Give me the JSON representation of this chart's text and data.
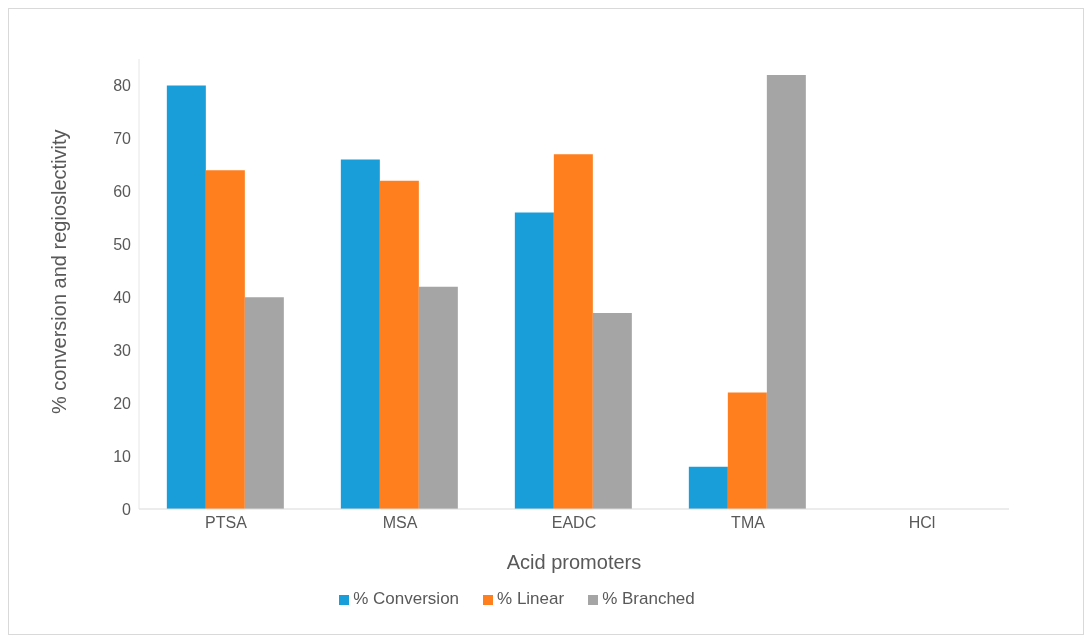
{
  "chart_data": {
    "type": "bar",
    "xlabel": "Acid promoters",
    "ylabel": "% conversion and regioslectivity",
    "categories": [
      "PTSA",
      "MSA",
      "EADC",
      "TMA",
      "HCl"
    ],
    "series": [
      {
        "name": "% Conversion",
        "color": "#1a9ed9",
        "values": [
          80,
          66,
          56,
          8,
          0
        ]
      },
      {
        "name": "% Linear",
        "color": "#ff7f1e",
        "values": [
          64,
          62,
          67,
          22,
          0
        ]
      },
      {
        "name": "% Branched",
        "color": "#a5a5a5",
        "values": [
          40,
          42,
          37,
          82,
          null
        ]
      }
    ],
    "ylim": [
      0,
      85
    ],
    "yticks": [
      0,
      10,
      20,
      30,
      40,
      50,
      60,
      70,
      80
    ],
    "grid": false,
    "legend": "bottom"
  }
}
